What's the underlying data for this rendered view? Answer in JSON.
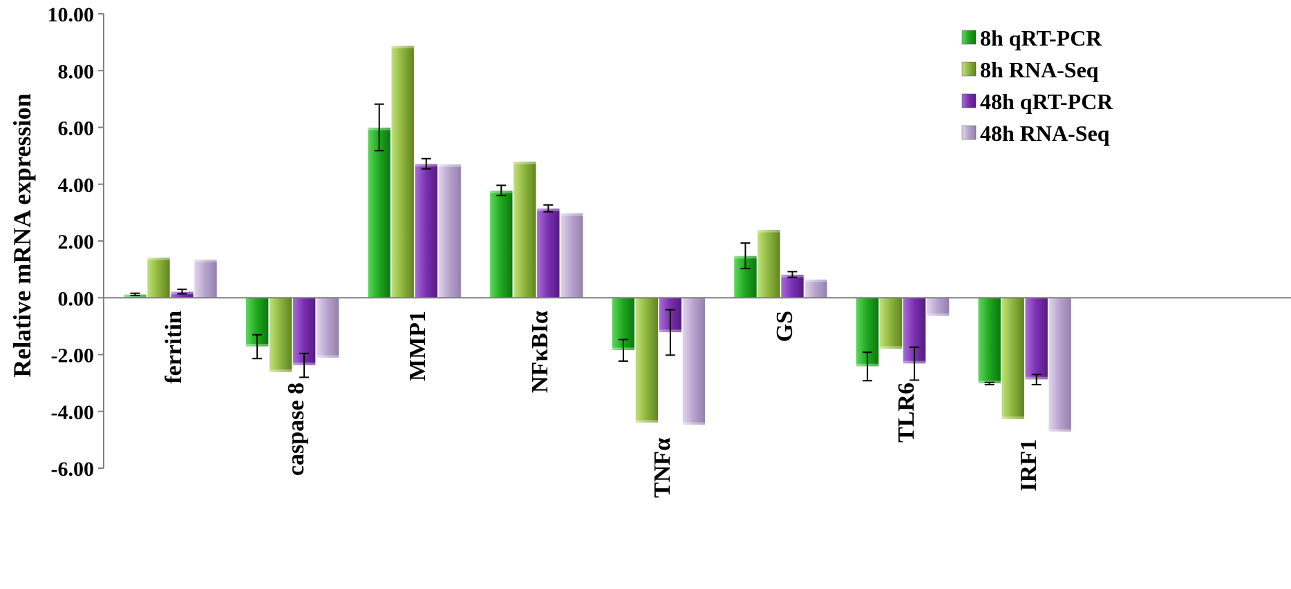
{
  "chart_data": {
    "type": "bar",
    "ylabel": "Relative mRNA expression",
    "ylim": [
      -6,
      10
    ],
    "yticks": [
      10,
      8,
      6,
      4,
      2,
      0,
      -2,
      -4,
      -6
    ],
    "ytick_labels": [
      "10.00",
      "8.00",
      "6.00",
      "4.00",
      "2.00",
      "0.00",
      "-2.00",
      "-4.00",
      "-6.00"
    ],
    "categories": [
      "ferritin",
      "caspase 8",
      "MMP1",
      "NFκBIα",
      "TNFα",
      "GS",
      "TLR6",
      "IRF1"
    ],
    "legend_position": "top-right",
    "series": [
      {
        "name": "8h qRT-PCR",
        "color": "#1fa61f",
        "values": [
          0.12,
          -1.72,
          6.0,
          3.78,
          -1.85,
          1.48,
          -2.42,
          -3.02
        ],
        "errors": [
          0.04,
          0.42,
          0.82,
          0.18,
          0.38,
          0.45,
          0.5,
          0.04
        ]
      },
      {
        "name": "8h RNA-Seq",
        "color": "#8cb43c",
        "values": [
          1.42,
          -2.62,
          8.88,
          4.8,
          -4.4,
          2.4,
          -1.8,
          -4.28
        ],
        "errors": null
      },
      {
        "name": "48h qRT-PCR",
        "color": "#7a2fb0",
        "values": [
          0.22,
          -2.38,
          4.72,
          3.15,
          -1.22,
          0.82,
          -2.32,
          -2.88
        ],
        "errors": [
          0.08,
          0.42,
          0.18,
          0.12,
          0.8,
          0.1,
          0.58,
          0.18
        ]
      },
      {
        "name": "48h RNA-Seq",
        "color": "#b6a2cc",
        "values": [
          1.35,
          -2.12,
          4.7,
          2.98,
          -4.48,
          0.65,
          -0.65,
          -4.72
        ],
        "errors": null
      }
    ]
  }
}
